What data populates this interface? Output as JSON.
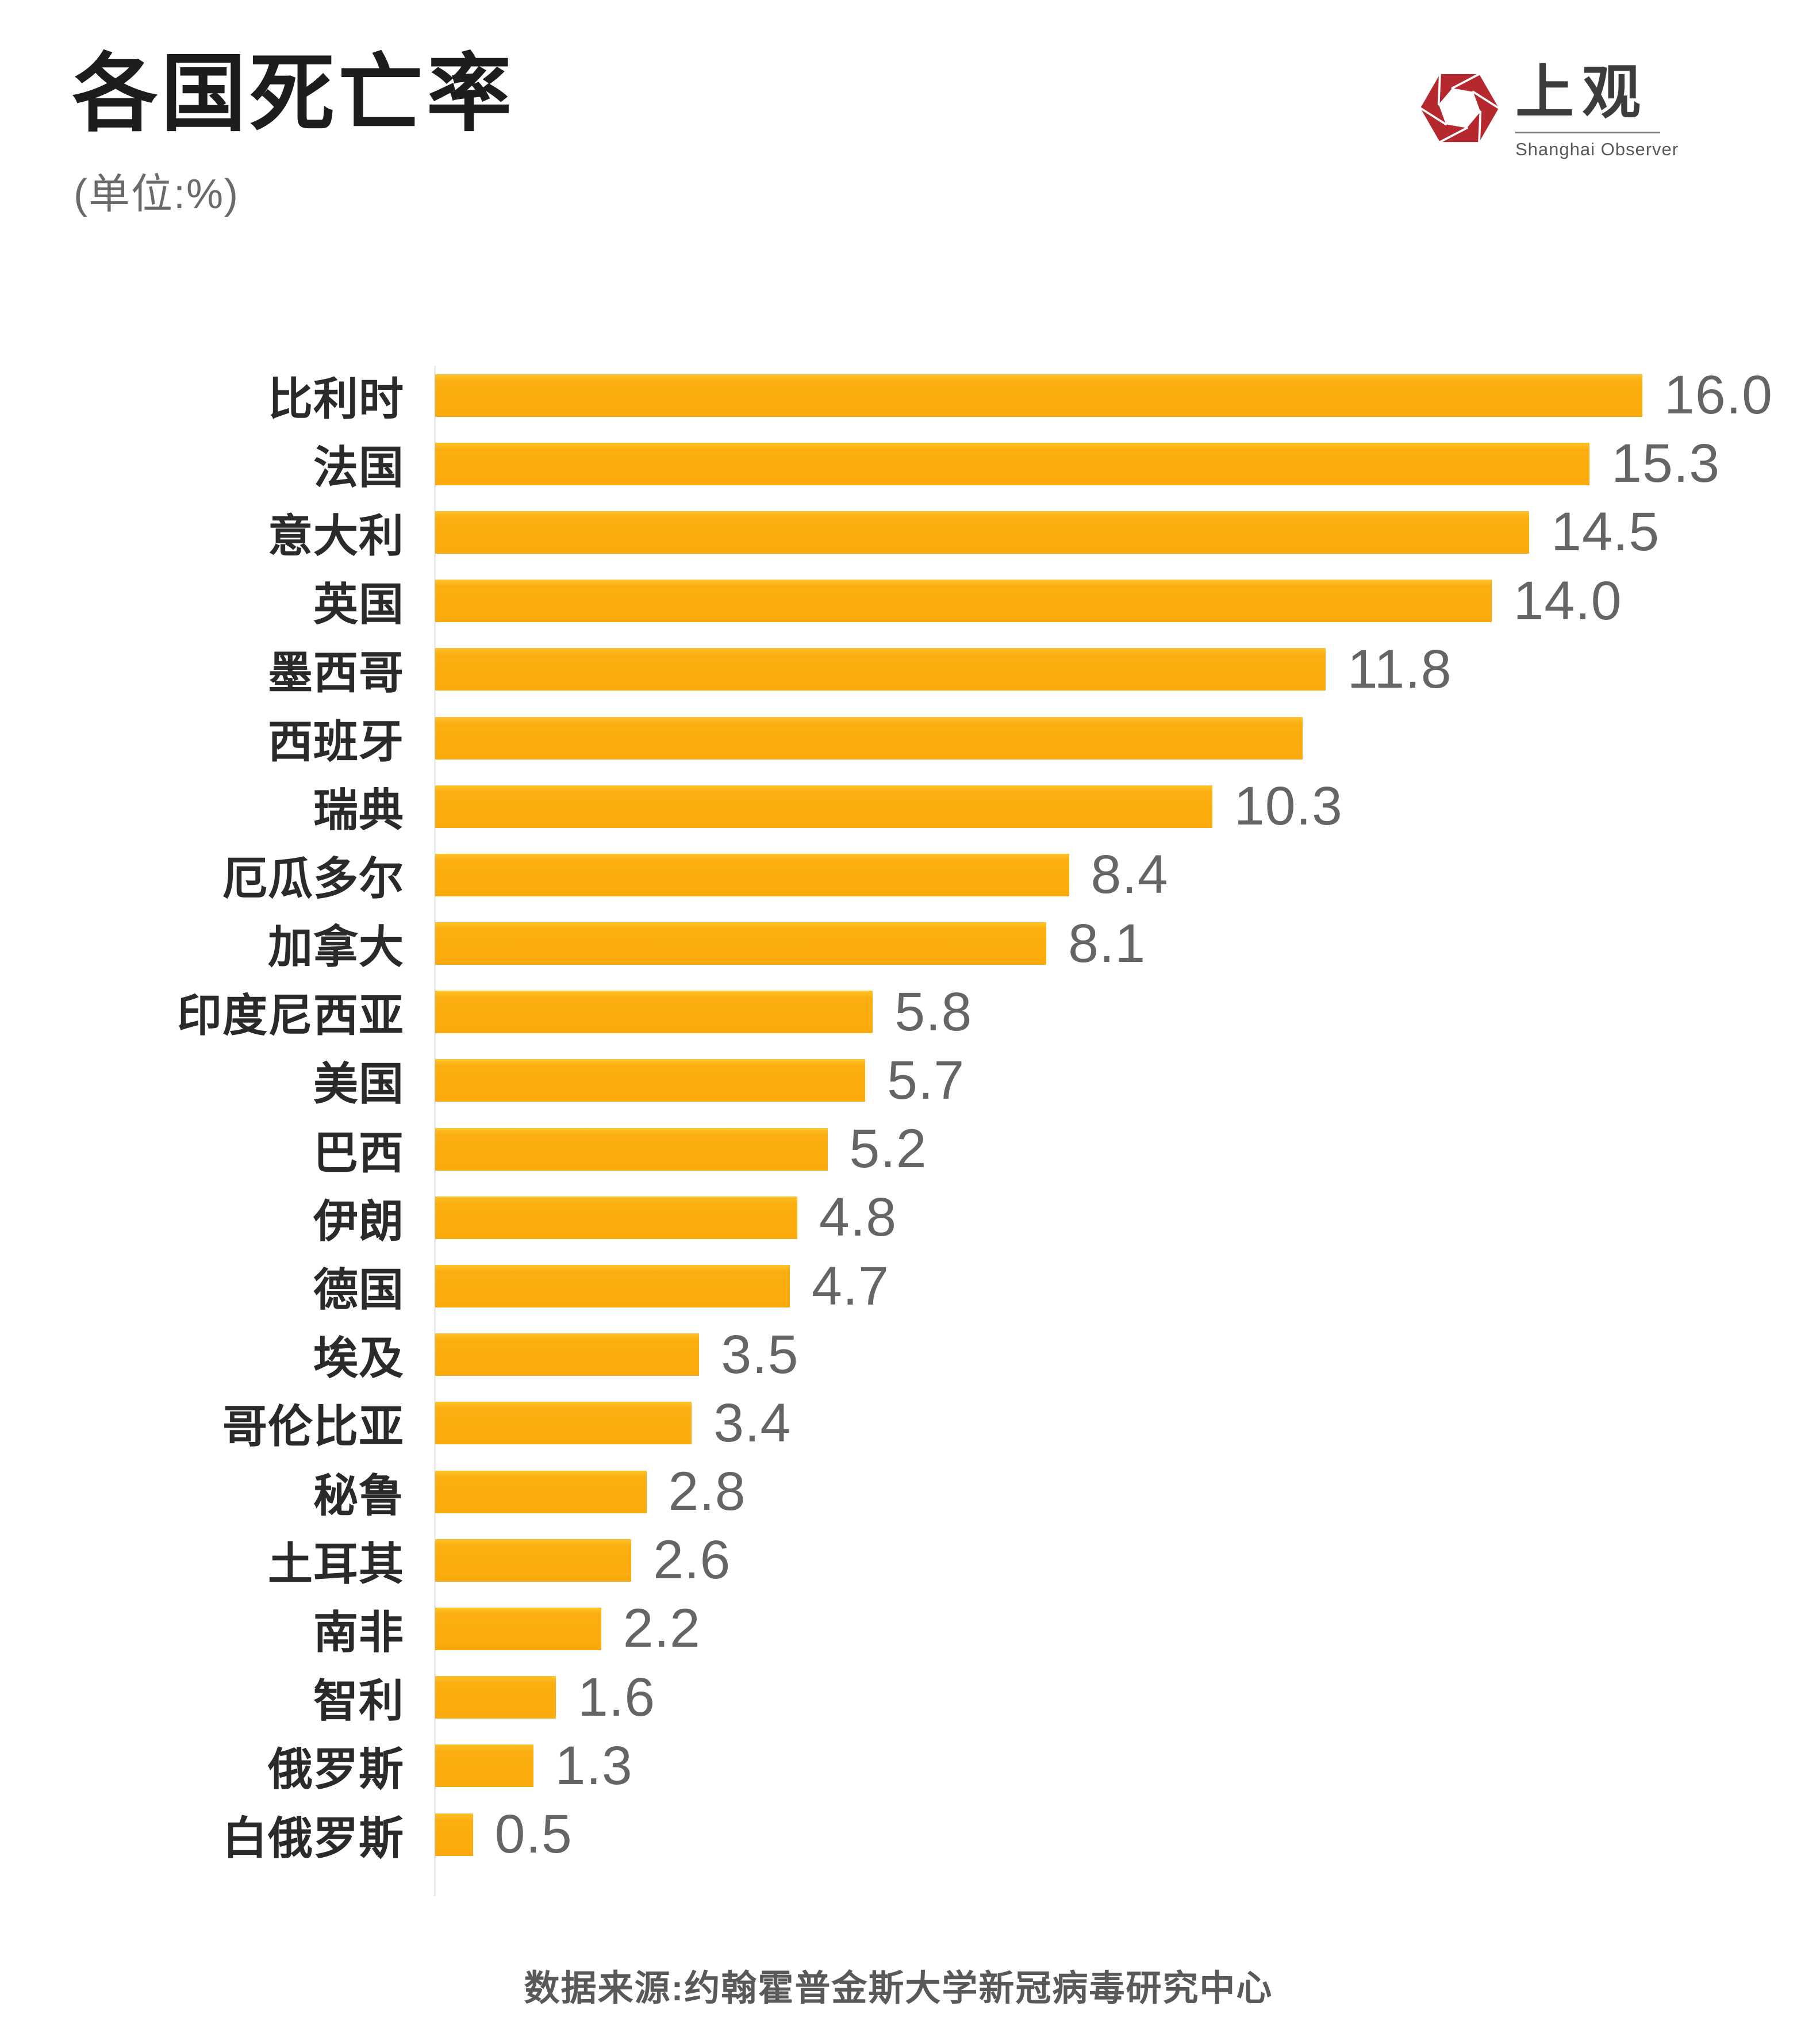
{
  "header": {
    "title": "各国死亡率",
    "subtitle": "(单位:%)"
  },
  "logo": {
    "name_cn": "上观",
    "name_en": "Shanghai Observer",
    "brand_red": "#B4282E",
    "ink_color": "#3B3C3E"
  },
  "chart_data": {
    "type": "bar",
    "orientation": "horizontal",
    "unit": "%",
    "title": "各国死亡率",
    "xlabel": "",
    "ylabel": "",
    "axis_range": [
      0,
      16.8
    ],
    "grid": false,
    "legend": "none",
    "bar_color": "#FCAC0C",
    "value_label_color": "#646567",
    "category_label_color": "#2B292C",
    "categories": [
      "比利时",
      "法国",
      "意大利",
      "英国",
      "墨西哥",
      "西班牙",
      "瑞典",
      "厄瓜多尔",
      "加拿大",
      "印度尼西亚",
      "美国",
      "巴西",
      "伊朗",
      "德国",
      "埃及",
      "哥伦比亚",
      "秘鲁",
      "土耳其",
      "南非",
      "智利",
      "俄罗斯",
      "白俄罗斯"
    ],
    "values": [
      16.0,
      15.3,
      14.5,
      14.0,
      11.8,
      11.5,
      10.3,
      8.4,
      8.1,
      5.8,
      5.7,
      5.2,
      4.8,
      4.7,
      3.5,
      3.4,
      2.8,
      2.6,
      2.2,
      1.6,
      1.3,
      0.5
    ],
    "value_labels": [
      "16.0",
      "15.3",
      "14.5",
      "14.0",
      "11.8",
      "",
      "10.3",
      "8.4",
      "8.1",
      "5.8",
      "5.7",
      "5.2",
      "4.8",
      "4.7",
      "3.5",
      "3.4",
      "2.8",
      "2.6",
      "2.2",
      "1.6",
      "1.3",
      "0.5"
    ]
  },
  "footer": {
    "source": "数据来源:约翰霍普金斯大学新冠病毒研究中心"
  }
}
